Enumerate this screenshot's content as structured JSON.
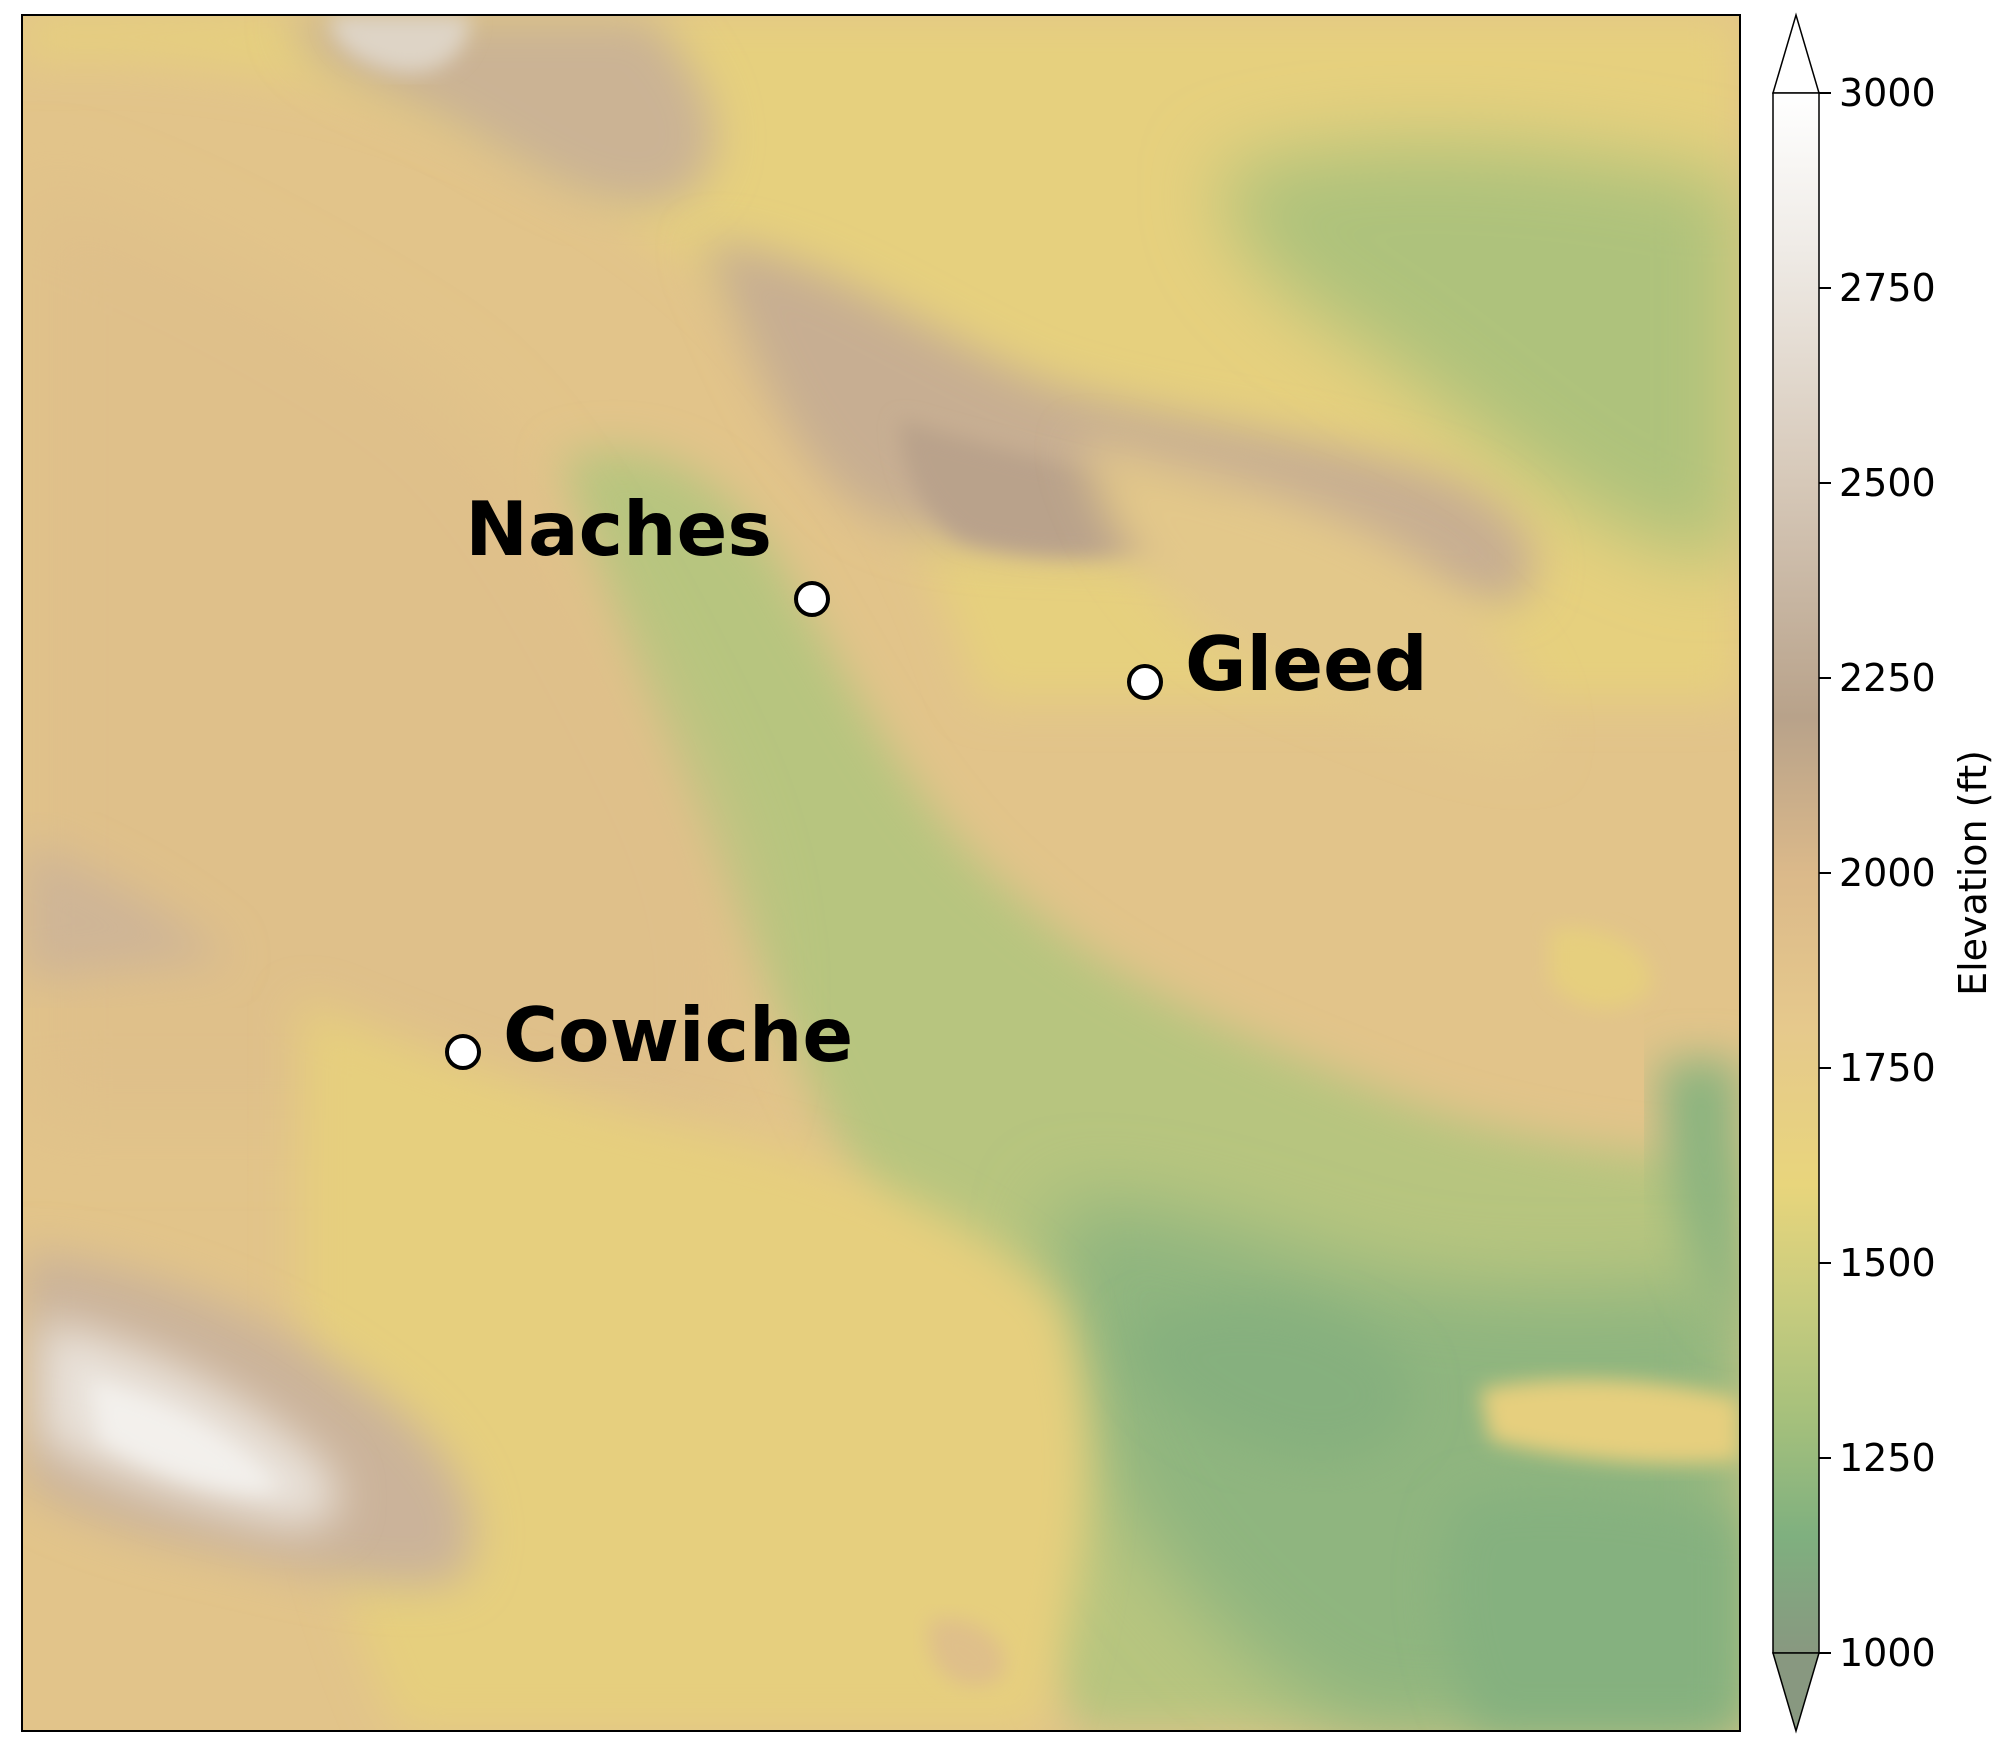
{
  "map": {
    "places": [
      {
        "name": "Naches",
        "label_side": "upper-left"
      },
      {
        "name": "Gleed",
        "label_side": "right"
      },
      {
        "name": "Cowiche",
        "label_side": "right"
      }
    ],
    "marker_fill": "#ffffff",
    "marker_edge": "#000000"
  },
  "colorbar": {
    "label": "Elevation (ft)",
    "min": 1000,
    "max": 3000,
    "extend": "both",
    "ticks": [
      "1000",
      "1250",
      "1500",
      "1750",
      "2000",
      "2250",
      "2500",
      "2750",
      "3000"
    ],
    "colormap_stops": [
      {
        "value": 1000,
        "color": "#889880"
      },
      {
        "value": 1150,
        "color": "#7fb07f"
      },
      {
        "value": 1300,
        "color": "#a5c07c"
      },
      {
        "value": 1450,
        "color": "#c8cc7e"
      },
      {
        "value": 1600,
        "color": "#e8d57c"
      },
      {
        "value": 1800,
        "color": "#e6c98c"
      },
      {
        "value": 2000,
        "color": "#dbb98a"
      },
      {
        "value": 2200,
        "color": "#b8a28a"
      },
      {
        "value": 2500,
        "color": "#d6c8b8"
      },
      {
        "value": 2800,
        "color": "#efebe6"
      },
      {
        "value": 3000,
        "color": "#ffffff"
      }
    ]
  }
}
